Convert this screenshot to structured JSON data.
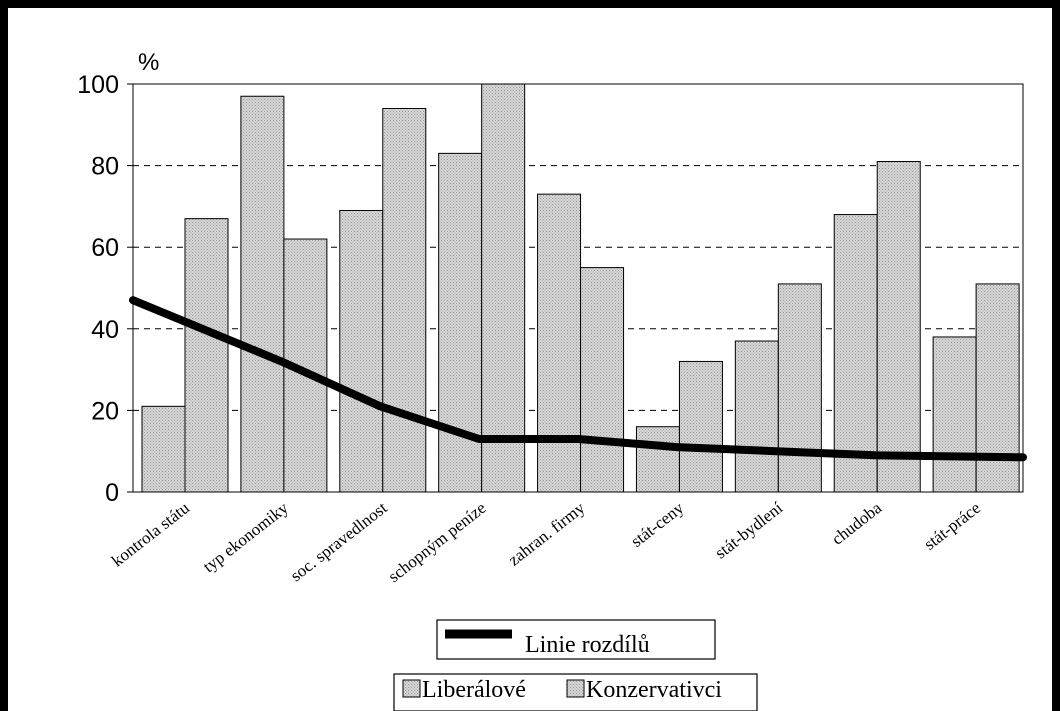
{
  "chart_data": {
    "type": "bar",
    "categories": [
      "kontrola státu",
      "typ ekonomiky",
      "soc. spravedlnost",
      "schopným peníze",
      "zahran. firmy",
      "stát-ceny",
      "stát-bydlení",
      "chudoba",
      "stát-práce"
    ],
    "series": [
      {
        "name": "Liberálové",
        "kind": "bar",
        "values": [
          21,
          97,
          69,
          83,
          73,
          16,
          37,
          68,
          38
        ]
      },
      {
        "name": "Konzervativci",
        "kind": "bar",
        "values": [
          67,
          62,
          94,
          100,
          55,
          32,
          51,
          81,
          51
        ]
      },
      {
        "name": "Linie rozdílů",
        "kind": "line",
        "values": [
          47,
          32,
          21,
          13,
          13,
          11,
          10,
          9,
          8.5
        ]
      }
    ],
    "ylabel": "%",
    "ylim": [
      0,
      100
    ],
    "yticks": [
      0,
      20,
      40,
      60,
      80,
      100
    ],
    "grid": "dashed horizontal",
    "legend_placement": "bottom",
    "colors": {
      "bar_fill": "#c9c9c9",
      "line": "#000000",
      "frame": "#000000"
    }
  }
}
